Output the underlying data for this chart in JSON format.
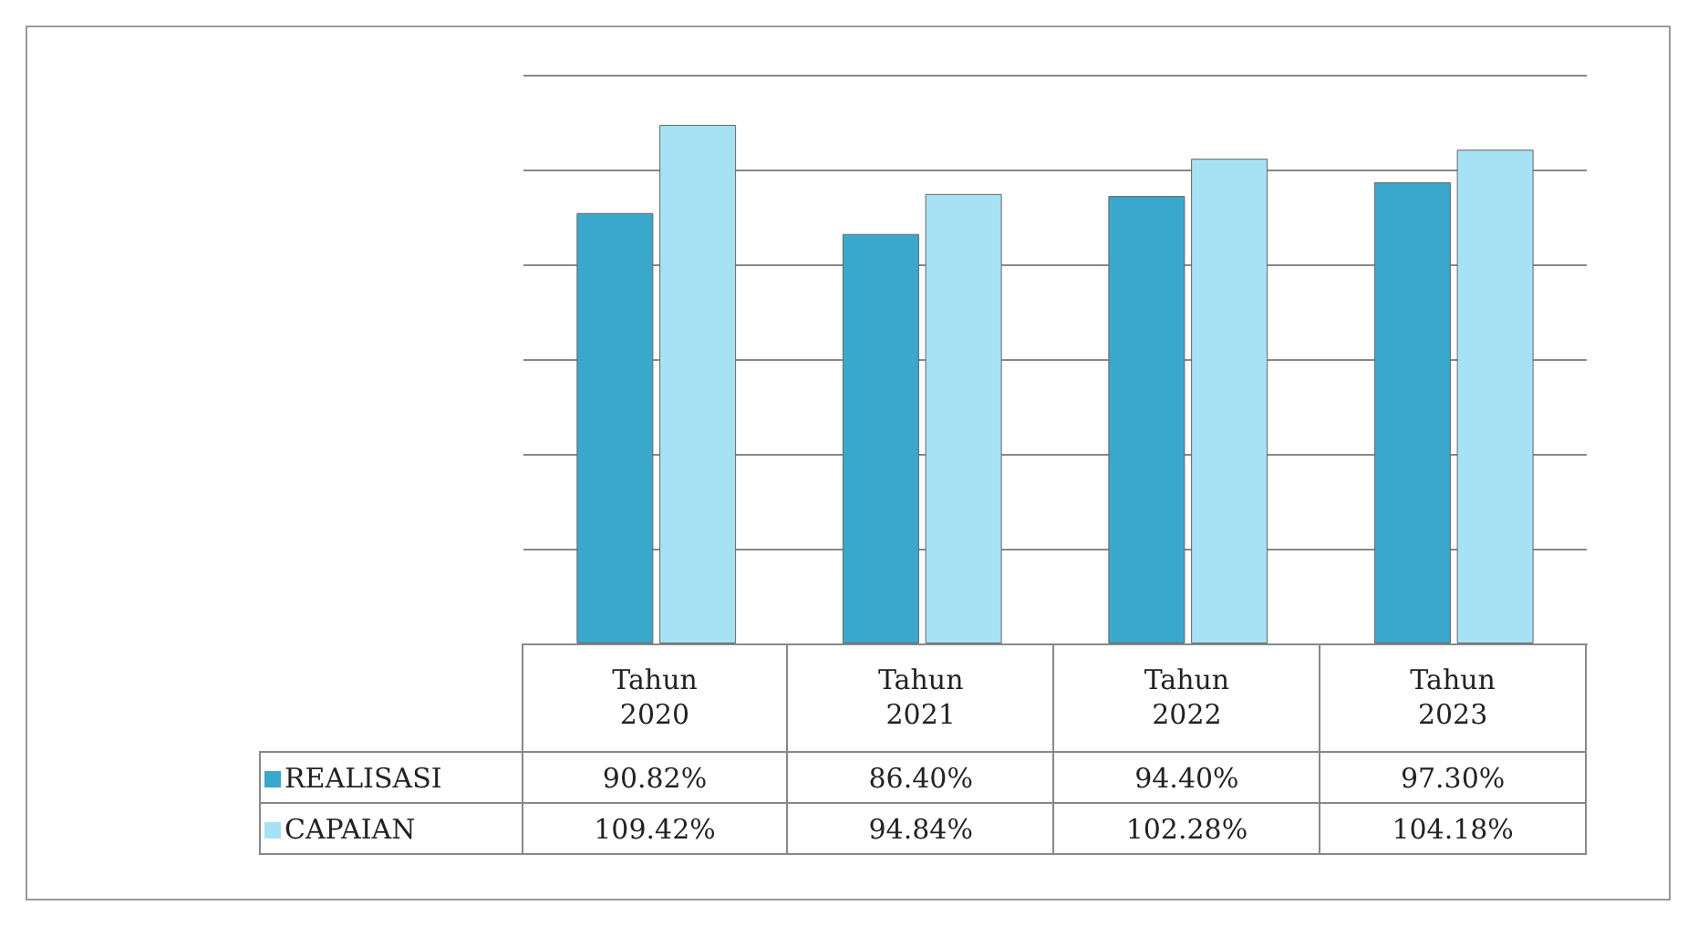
{
  "chart_data": {
    "type": "bar",
    "categories": [
      "Tahun 2020",
      "Tahun 2021",
      "Tahun 2022",
      "Tahun 2023"
    ],
    "series": [
      {
        "name": "REALISASI",
        "color": "#3aa7cc",
        "values": [
          90.82,
          86.4,
          94.4,
          97.3
        ],
        "value_labels": [
          "90.82%",
          "86.40%",
          "94.40%",
          "97.30%"
        ]
      },
      {
        "name": "CAPAIAN",
        "color": "#a6e2f3",
        "values": [
          109.42,
          94.84,
          102.28,
          104.18
        ],
        "value_labels": [
          "109.42%",
          "94.84%",
          "102.28%",
          "104.18%"
        ]
      }
    ],
    "ylim": [
      0,
      120
    ],
    "yticks": [
      {
        "value": 0,
        "label": null
      },
      {
        "value": 20,
        "label": null
      },
      {
        "value": 40,
        "label": null
      },
      {
        "value": 60,
        "label": null
      },
      {
        "value": 80,
        "label": null
      },
      {
        "value": 100,
        "label": null
      },
      {
        "value": 120,
        "label": null
      }
    ],
    "grid": "y",
    "legend": "left"
  }
}
